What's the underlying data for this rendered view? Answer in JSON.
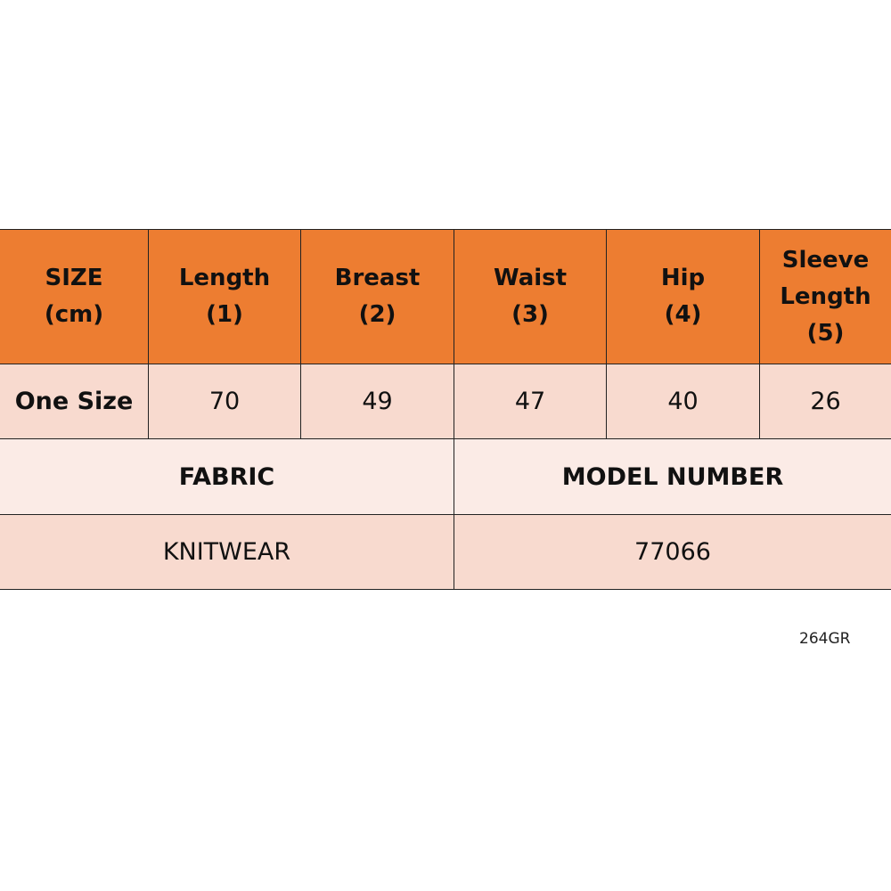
{
  "colors": {
    "header": "#ED7D31",
    "row": "#F8DACF",
    "label_row": "#FBEBE6"
  },
  "headers": [
    "SIZE\n(cm)",
    "Length\n(1)",
    "Breast\n(2)",
    "Waist\n(3)",
    "Hip\n(4)",
    "Sleeve\nLength\n(5)"
  ],
  "row": [
    "One Size",
    "70",
    "49",
    "47",
    "40",
    "26"
  ],
  "fabric": {
    "label": "FABRIC",
    "value": "KNITWEAR"
  },
  "model": {
    "label": "MODEL NUMBER",
    "value": "77066"
  },
  "code": "264GR"
}
